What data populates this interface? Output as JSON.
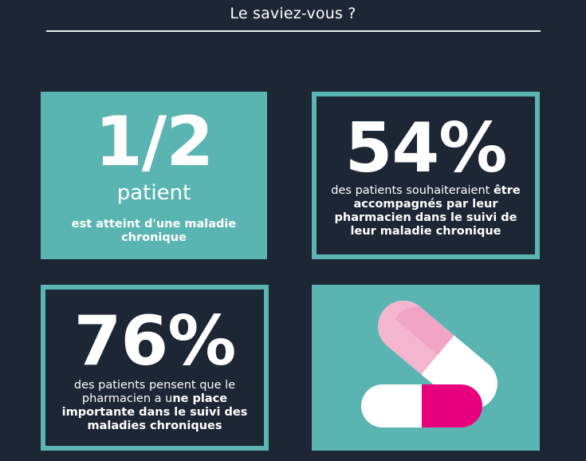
{
  "header": {
    "title": "Le saviez-vous ?"
  },
  "stats": [
    {
      "value": "1/2",
      "unit": "patient",
      "text": "est atteint d'une maladie chronique"
    },
    {
      "value": "54%",
      "text_regular": "des patients souhaiteraient",
      "text_bold": "être accompagnés par leur pharmacien dans le suivi de leur maladie chronique"
    },
    {
      "value": "76%",
      "text_regular": "des patients pensent que le pharmacien a u",
      "text_bold": "ne place importante dans le suivi des maladies chroniques"
    }
  ],
  "illustration": {
    "icon": "pills-icon"
  },
  "colors": {
    "background": "#1c2634",
    "accent": "#5ab5b2",
    "pill_pink": "#e6007e",
    "pill_light_pink": "#f4b6cf",
    "pill_white": "#ffffff"
  }
}
